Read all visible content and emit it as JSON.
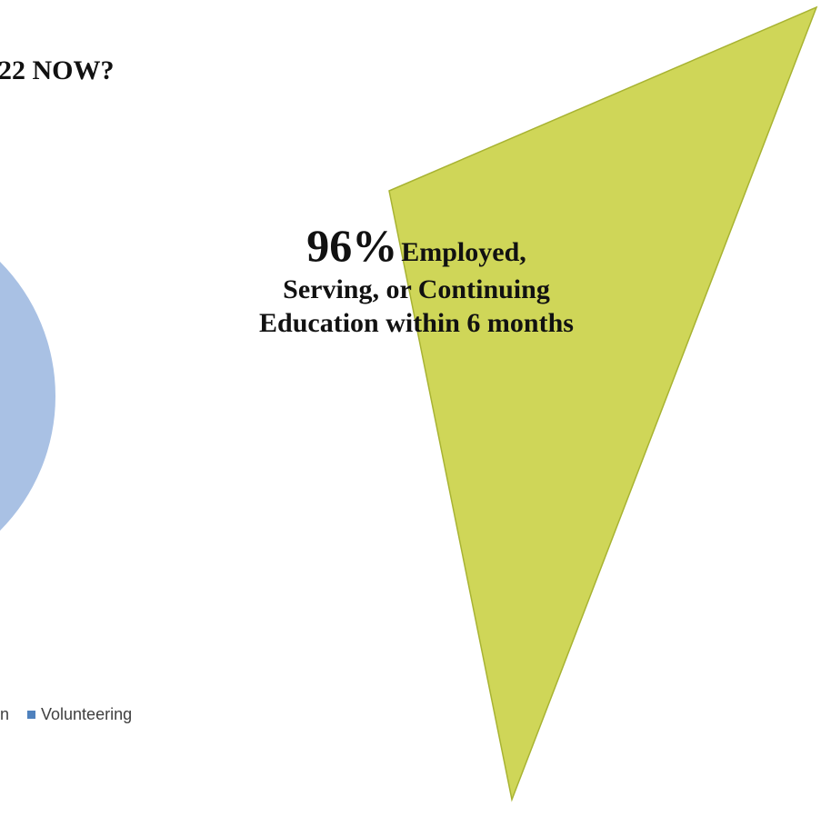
{
  "heading": {
    "visible_text": "22 NOW?"
  },
  "legend": {
    "clipped_item_tail": "n",
    "item_label": "Volunteering",
    "item_color": "#4f81bd"
  },
  "pie_visible_color": "#a9c1e4",
  "callout": {
    "percent": "96%",
    "lead": "Employed,",
    "body": "Serving, or Continuing Education within 6 months",
    "shape_color": "#cfd658",
    "shape_stroke": "#a8b332"
  }
}
